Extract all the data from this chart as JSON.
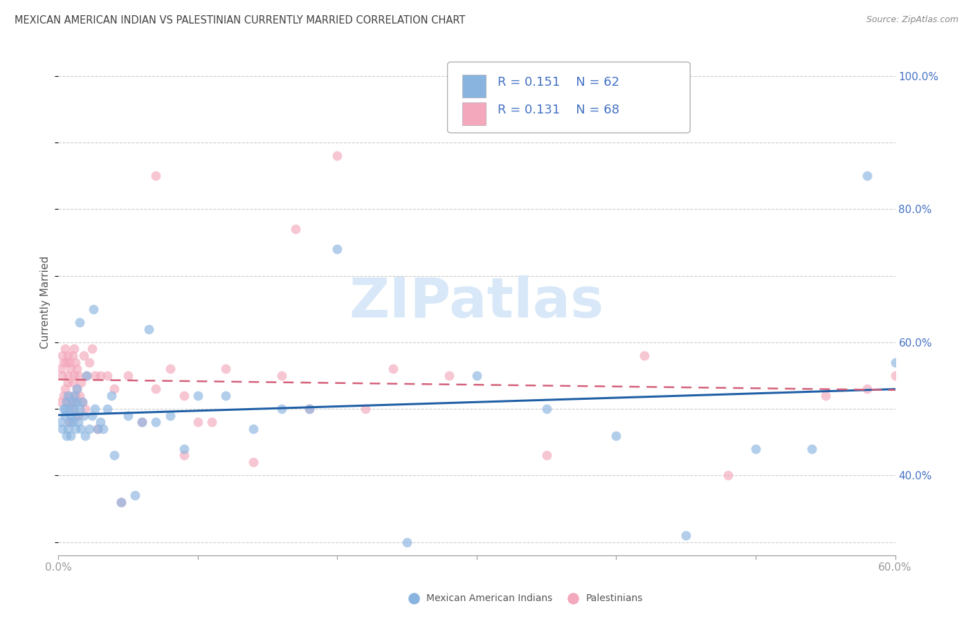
{
  "title": "MEXICAN AMERICAN INDIAN VS PALESTINIAN CURRENTLY MARRIED CORRELATION CHART",
  "source": "Source: ZipAtlas.com",
  "ylabel": "Currently Married",
  "blue_color": "#8ab4e0",
  "pink_color": "#f4a8bc",
  "blue_line_color": "#1f5fa6",
  "pink_line_color": "#d4607a",
  "watermark": "ZIPatlas",
  "legend_r_blue": "R = 0.151",
  "legend_n_blue": "N = 62",
  "legend_r_pink": "R = 0.131",
  "legend_n_pink": "N = 68",
  "axis_label_color": "#4472c4",
  "grid_color": "#cccccc",
  "background_color": "#ffffff",
  "title_color": "#404040",
  "watermark_color": "#d8e8f8",
  "xlim": [
    0.0,
    0.6
  ],
  "ylim": [
    0.28,
    1.04
  ],
  "blue_scatter_x": [
    0.002,
    0.003,
    0.004,
    0.005,
    0.005,
    0.006,
    0.006,
    0.007,
    0.007,
    0.008,
    0.008,
    0.009,
    0.009,
    0.01,
    0.01,
    0.011,
    0.011,
    0.012,
    0.012,
    0.013,
    0.013,
    0.014,
    0.015,
    0.015,
    0.016,
    0.017,
    0.018,
    0.019,
    0.02,
    0.022,
    0.024,
    0.025,
    0.026,
    0.028,
    0.03,
    0.032,
    0.035,
    0.038,
    0.04,
    0.045,
    0.05,
    0.055,
    0.06,
    0.065,
    0.07,
    0.08,
    0.09,
    0.1,
    0.12,
    0.14,
    0.16,
    0.18,
    0.2,
    0.25,
    0.3,
    0.35,
    0.4,
    0.45,
    0.5,
    0.54,
    0.58,
    0.6
  ],
  "blue_scatter_y": [
    0.48,
    0.47,
    0.5,
    0.49,
    0.5,
    0.46,
    0.51,
    0.47,
    0.52,
    0.48,
    0.5,
    0.49,
    0.46,
    0.51,
    0.48,
    0.5,
    0.52,
    0.49,
    0.47,
    0.53,
    0.51,
    0.48,
    0.5,
    0.63,
    0.47,
    0.51,
    0.49,
    0.46,
    0.55,
    0.47,
    0.49,
    0.65,
    0.5,
    0.47,
    0.48,
    0.47,
    0.5,
    0.52,
    0.43,
    0.36,
    0.49,
    0.37,
    0.48,
    0.62,
    0.48,
    0.49,
    0.44,
    0.52,
    0.52,
    0.47,
    0.5,
    0.5,
    0.74,
    0.3,
    0.55,
    0.5,
    0.46,
    0.31,
    0.44,
    0.44,
    0.85,
    0.57
  ],
  "pink_scatter_x": [
    0.002,
    0.002,
    0.003,
    0.003,
    0.004,
    0.004,
    0.005,
    0.005,
    0.006,
    0.006,
    0.007,
    0.007,
    0.007,
    0.008,
    0.008,
    0.008,
    0.009,
    0.009,
    0.01,
    0.01,
    0.01,
    0.011,
    0.011,
    0.011,
    0.012,
    0.012,
    0.013,
    0.013,
    0.014,
    0.014,
    0.015,
    0.016,
    0.017,
    0.018,
    0.019,
    0.02,
    0.022,
    0.024,
    0.026,
    0.028,
    0.03,
    0.035,
    0.04,
    0.045,
    0.05,
    0.06,
    0.07,
    0.08,
    0.09,
    0.1,
    0.12,
    0.14,
    0.16,
    0.18,
    0.2,
    0.22,
    0.24,
    0.07,
    0.09,
    0.11,
    0.17,
    0.28,
    0.35,
    0.42,
    0.48,
    0.55,
    0.58,
    0.6
  ],
  "pink_scatter_y": [
    0.51,
    0.56,
    0.55,
    0.58,
    0.52,
    0.57,
    0.53,
    0.59,
    0.51,
    0.57,
    0.54,
    0.55,
    0.58,
    0.48,
    0.52,
    0.57,
    0.51,
    0.56,
    0.5,
    0.54,
    0.58,
    0.51,
    0.55,
    0.59,
    0.52,
    0.57,
    0.53,
    0.56,
    0.49,
    0.55,
    0.52,
    0.54,
    0.51,
    0.58,
    0.5,
    0.55,
    0.57,
    0.59,
    0.55,
    0.47,
    0.55,
    0.55,
    0.53,
    0.36,
    0.55,
    0.48,
    0.53,
    0.56,
    0.43,
    0.48,
    0.56,
    0.42,
    0.55,
    0.5,
    0.88,
    0.5,
    0.56,
    0.85,
    0.52,
    0.48,
    0.77,
    0.55,
    0.43,
    0.58,
    0.4,
    0.52,
    0.53,
    0.55
  ]
}
